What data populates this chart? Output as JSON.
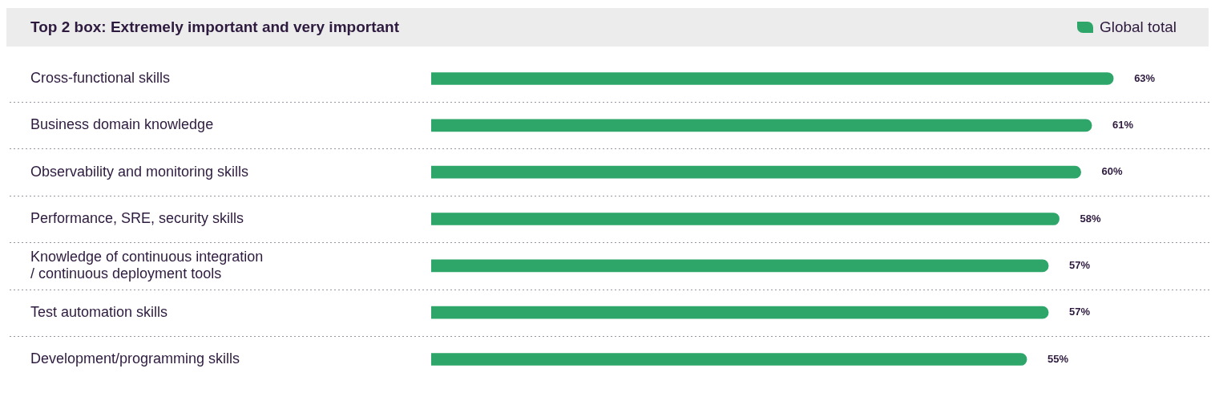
{
  "chart_data": {
    "type": "bar",
    "orientation": "horizontal",
    "title": "Top 2 box: Extremely important and very important",
    "categories": [
      "Cross-functional skills",
      "Business domain knowledge",
      "Observability and monitoring skills",
      "Performance, SRE, security skills",
      "Knowledge of continuous integration / continuous deployment tools",
      "Test automation skills",
      "Development/programming skills"
    ],
    "series": [
      {
        "name": "Global total",
        "color": "#2ea66a",
        "values": [
          63,
          61,
          60,
          58,
          57,
          57,
          55
        ],
        "value_labels": [
          "63%",
          "61%",
          "60%",
          "58%",
          "57%",
          "57%",
          "55%"
        ]
      }
    ],
    "legend": "top right",
    "grid": "y"
  }
}
